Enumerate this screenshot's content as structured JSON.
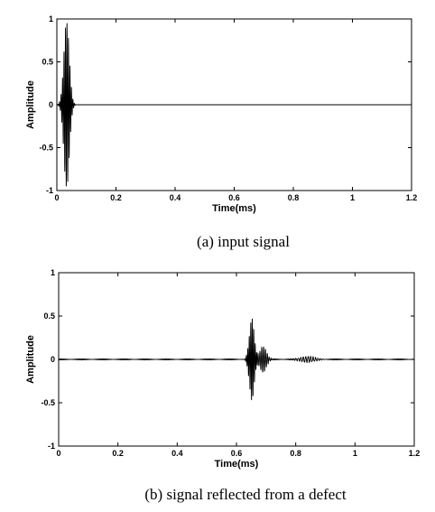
{
  "chart_data": [
    {
      "type": "line",
      "caption": "(a)  input signal",
      "xlabel": "Time(ms)",
      "ylabel": "Amplitude",
      "xlim": [
        0,
        1.2
      ],
      "ylim": [
        -1,
        1
      ],
      "xticks": [
        0,
        0.2,
        0.4,
        0.6,
        0.8,
        1,
        1.2
      ],
      "xtick_labels": [
        "0",
        "0.2",
        "0.4",
        "0.6",
        "0.8",
        "1",
        "1.2"
      ],
      "yticks": [
        -1,
        -0.5,
        0,
        0.5,
        1
      ],
      "ytick_labels": [
        "-1",
        "-0.5",
        "0",
        "0.5",
        "1"
      ],
      "grid": false,
      "color": "#000000",
      "series": [
        {
          "bursts": [
            {
              "center": 0.033,
              "width": 0.013,
              "amplitude": 0.98,
              "freq_khz": 200
            }
          ],
          "baseline_noise": 0.0
        }
      ]
    },
    {
      "type": "line",
      "caption": "(b)  signal  reflected  from  a  defect",
      "xlabel": "Time(ms)",
      "ylabel": "Amplitude",
      "xlim": [
        0,
        1.2
      ],
      "ylim": [
        -1,
        1
      ],
      "xticks": [
        0,
        0.2,
        0.4,
        0.6,
        0.8,
        1,
        1.2
      ],
      "xtick_labels": [
        "0",
        "0.2",
        "0.4",
        "0.6",
        "0.8",
        "1",
        "1.2"
      ],
      "yticks": [
        -1,
        -0.5,
        0,
        0.5,
        1
      ],
      "ytick_labels": [
        "-1",
        "-0.5",
        "0",
        "0.5",
        "1"
      ],
      "grid": false,
      "color": "#000000",
      "series": [
        {
          "bursts": [
            {
              "center": 0.652,
              "width": 0.012,
              "amplitude": 0.47,
              "freq_khz": 200
            },
            {
              "center": 0.69,
              "width": 0.016,
              "amplitude": 0.15,
              "freq_khz": 160
            },
            {
              "center": 0.84,
              "width": 0.035,
              "amplitude": 0.035,
              "freq_khz": 120
            }
          ],
          "baseline_noise": 0.006
        }
      ]
    }
  ]
}
